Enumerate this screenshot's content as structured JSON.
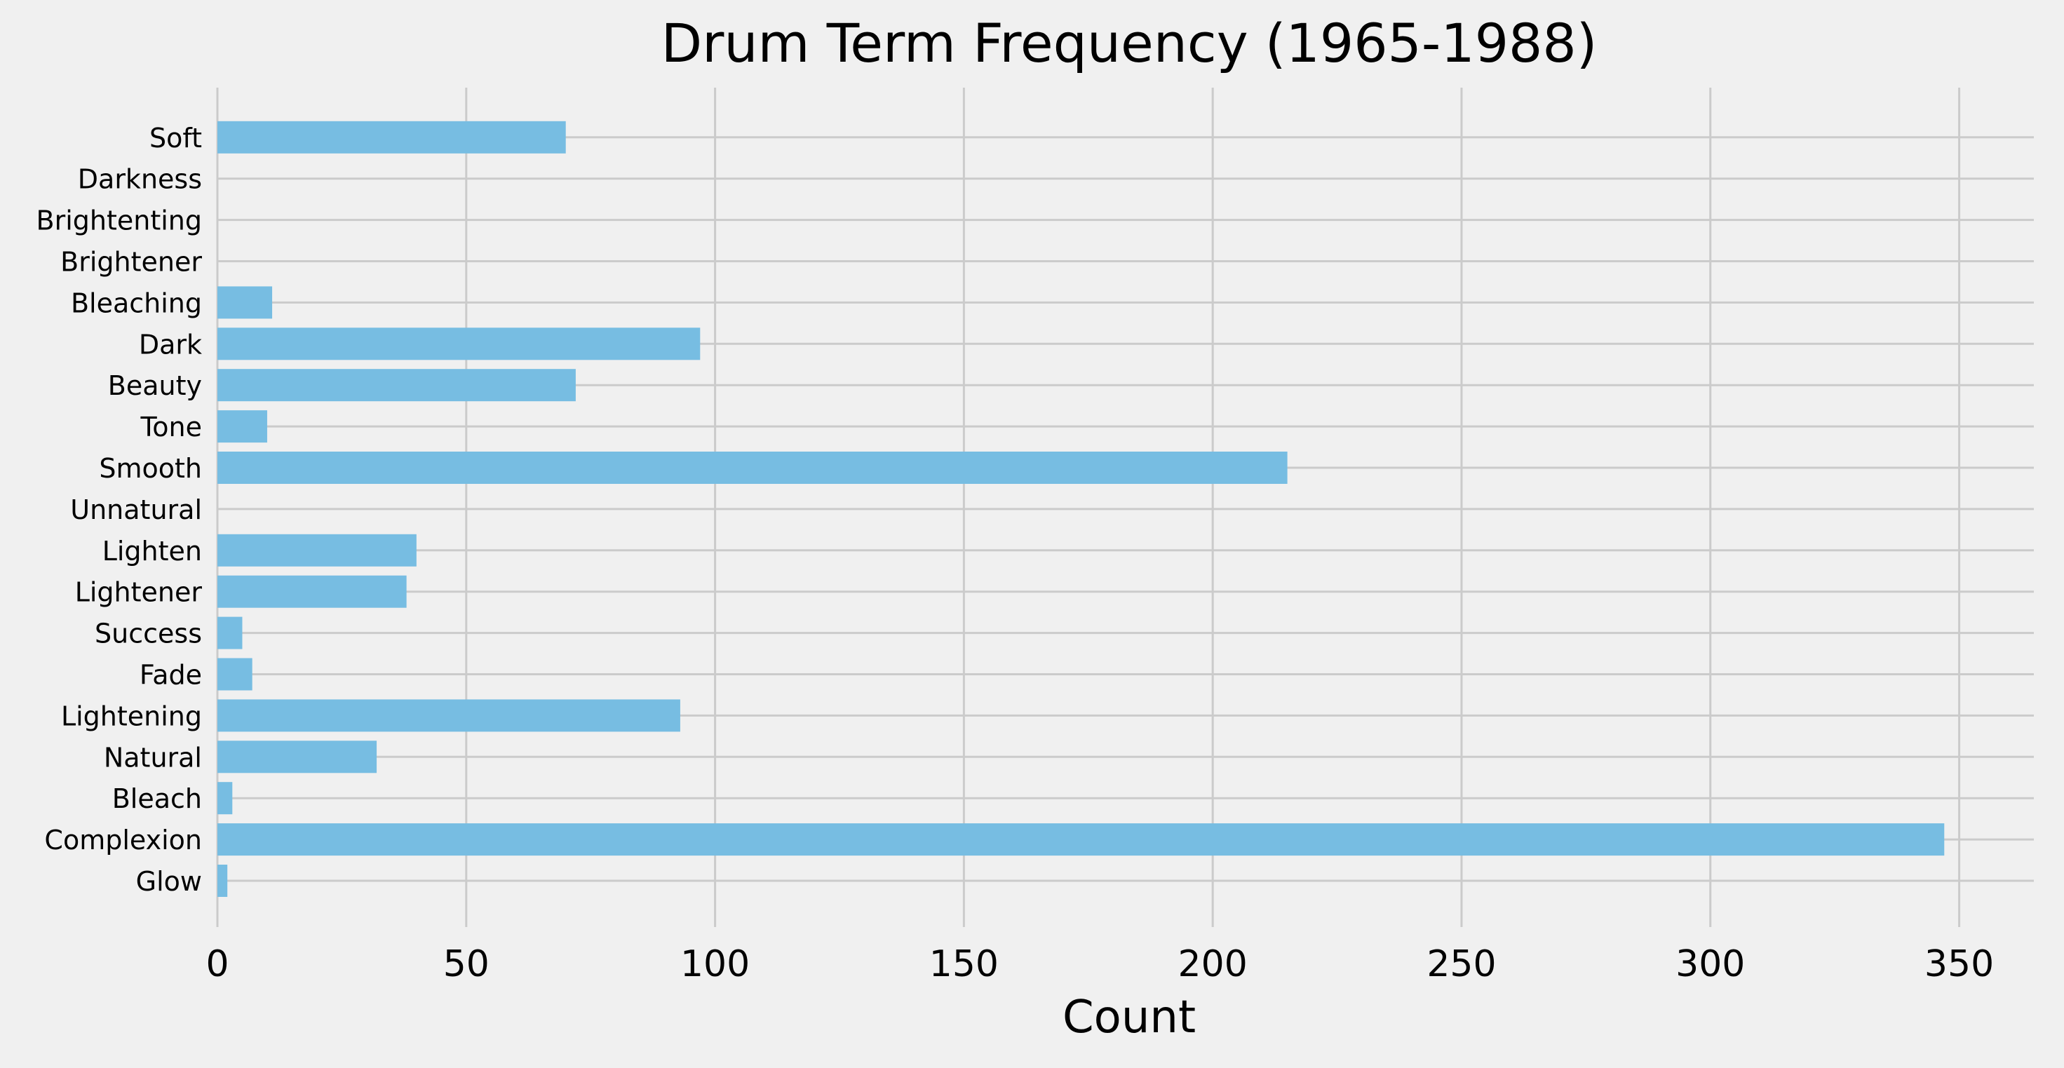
{
  "chart_data": {
    "type": "bar",
    "orientation": "horizontal",
    "title": "Drum Term Frequency (1965-1988)",
    "xlabel": "Count",
    "ylabel": "",
    "xlim": [
      0,
      365
    ],
    "xticks": [
      0,
      50,
      100,
      150,
      200,
      250,
      300,
      350
    ],
    "grid": true,
    "categories": [
      "Glow",
      "Complexion",
      "Bleach",
      "Natural",
      "Lightening",
      "Fade",
      "Success",
      "Lightener",
      "Lighten",
      "Unnatural",
      "Smooth",
      "Tone",
      "Beauty",
      "Dark",
      "Bleaching",
      "Brightener",
      "Brightenting",
      "Darkness",
      "Soft"
    ],
    "values": [
      2,
      347,
      3,
      32,
      93,
      7,
      5,
      38,
      40,
      0,
      215,
      10,
      72,
      97,
      11,
      0,
      0,
      0,
      70
    ],
    "colors": {
      "bar": "#77bde2",
      "background": "#f0f0f0",
      "grid": "#cbcbcb",
      "text": "#000000"
    }
  }
}
